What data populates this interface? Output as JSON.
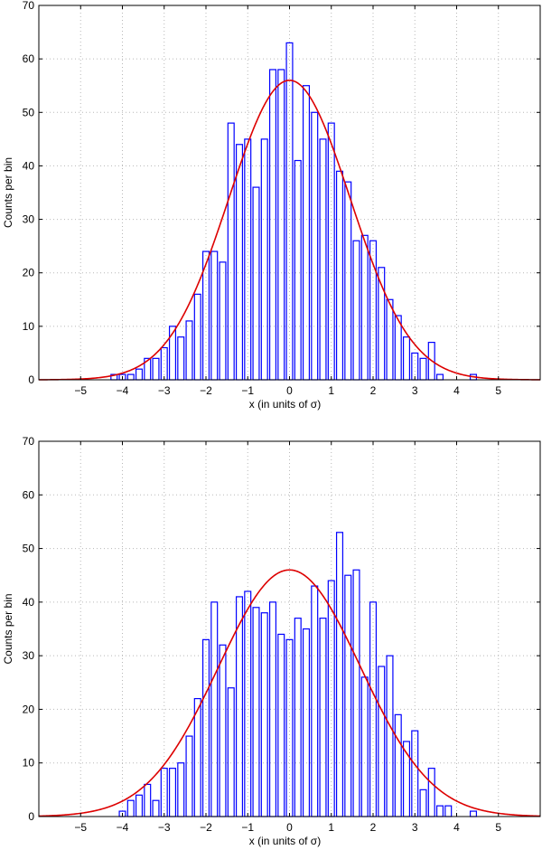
{
  "chart_data": [
    {
      "type": "bar",
      "xlabel": "x (in units of σ)",
      "ylabel": "Counts per bin",
      "xlim": [
        -6,
        6
      ],
      "ylim": [
        0,
        70
      ],
      "xticks": [
        -5,
        -4,
        -3,
        -2,
        -1,
        0,
        1,
        2,
        3,
        4,
        5
      ],
      "yticks": [
        0,
        10,
        20,
        30,
        40,
        50,
        60,
        70
      ],
      "x_tick_labels": [
        "−5",
        "−4",
        "−3",
        "−2",
        "−1",
        "0",
        "1",
        "2",
        "3",
        "4",
        "5"
      ],
      "y_tick_labels": [
        "0",
        "10",
        "20",
        "30",
        "40",
        "50",
        "60",
        "70"
      ],
      "grid": true,
      "bin_width": 0.2,
      "bar_color": "#0000ff",
      "curve_color": "#dd0000",
      "histogram": {
        "x": [
          -4.2,
          -4.0,
          -3.8,
          -3.6,
          -3.4,
          -3.2,
          -3.0,
          -2.8,
          -2.6,
          -2.4,
          -2.2,
          -2.0,
          -1.8,
          -1.6,
          -1.4,
          -1.2,
          -1.0,
          -0.8,
          -0.6,
          -0.4,
          -0.2,
          0.0,
          0.2,
          0.4,
          0.6,
          0.8,
          1.0,
          1.2,
          1.4,
          1.6,
          1.8,
          2.0,
          2.2,
          2.4,
          2.6,
          2.8,
          3.0,
          3.2,
          3.4,
          3.6,
          4.4
        ],
        "values": [
          1,
          1,
          1,
          2,
          4,
          4,
          6,
          10,
          8,
          11,
          16,
          24,
          24,
          22,
          48,
          44,
          45,
          36,
          45,
          58,
          58,
          63,
          41,
          55,
          50,
          45,
          48,
          39,
          37,
          26,
          27,
          26,
          21,
          15,
          12,
          8,
          5,
          4,
          7,
          1,
          1
        ]
      },
      "gaussian_fit": {
        "amplitude": 56,
        "mean": 0,
        "sigma": 1.45
      }
    },
    {
      "type": "bar",
      "xlabel": "x (in units of σ)",
      "ylabel": "Counts per bin",
      "xlim": [
        -6,
        6
      ],
      "ylim": [
        0,
        70
      ],
      "xticks": [
        -5,
        -4,
        -3,
        -2,
        -1,
        0,
        1,
        2,
        3,
        4,
        5
      ],
      "yticks": [
        0,
        10,
        20,
        30,
        40,
        50,
        60,
        70
      ],
      "x_tick_labels": [
        "−5",
        "−4",
        "−3",
        "−2",
        "−1",
        "0",
        "1",
        "2",
        "3",
        "4",
        "5"
      ],
      "y_tick_labels": [
        "0",
        "10",
        "20",
        "30",
        "40",
        "50",
        "60",
        "70"
      ],
      "grid": true,
      "bin_width": 0.2,
      "bar_color": "#0000ff",
      "curve_color": "#dd0000",
      "histogram": {
        "x": [
          -4.0,
          -3.8,
          -3.6,
          -3.4,
          -3.2,
          -3.0,
          -2.8,
          -2.6,
          -2.4,
          -2.2,
          -2.0,
          -1.8,
          -1.6,
          -1.4,
          -1.2,
          -1.0,
          -0.8,
          -0.6,
          -0.4,
          -0.2,
          0.0,
          0.2,
          0.4,
          0.6,
          0.8,
          1.0,
          1.2,
          1.4,
          1.6,
          1.8,
          2.0,
          2.2,
          2.4,
          2.6,
          2.8,
          3.0,
          3.2,
          3.4,
          3.6,
          3.8,
          4.4
        ],
        "values": [
          1,
          3,
          4,
          6,
          3,
          9,
          9,
          10,
          15,
          22,
          33,
          40,
          32,
          24,
          41,
          42,
          39,
          38,
          40,
          34,
          33,
          37,
          35,
          43,
          37,
          44,
          53,
          45,
          46,
          26,
          40,
          28,
          30,
          19,
          14,
          16,
          5,
          9,
          2,
          2,
          1
        ]
      },
      "gaussian_fit": {
        "amplitude": 46,
        "mean": 0,
        "sigma": 1.7
      }
    }
  ]
}
